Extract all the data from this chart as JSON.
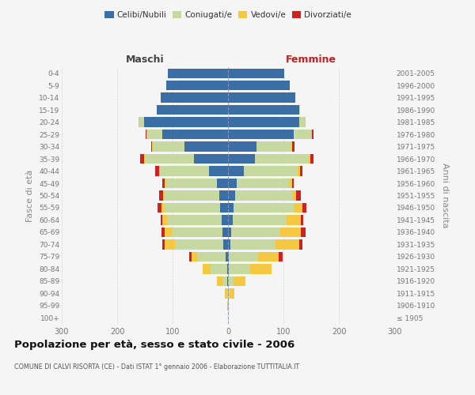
{
  "age_groups": [
    "100+",
    "95-99",
    "90-94",
    "85-89",
    "80-84",
    "75-79",
    "70-74",
    "65-69",
    "60-64",
    "55-59",
    "50-54",
    "45-49",
    "40-44",
    "35-39",
    "30-34",
    "25-29",
    "20-24",
    "15-19",
    "10-14",
    "5-9",
    "0-4"
  ],
  "birth_years": [
    "≤ 1905",
    "1906-1910",
    "1911-1915",
    "1916-1920",
    "1921-1925",
    "1926-1930",
    "1931-1935",
    "1936-1940",
    "1941-1945",
    "1946-1950",
    "1951-1955",
    "1956-1960",
    "1961-1965",
    "1966-1970",
    "1971-1975",
    "1976-1980",
    "1981-1985",
    "1986-1990",
    "1991-1995",
    "1996-2000",
    "2001-2005"
  ],
  "maschi_celibi": [
    0,
    0,
    0,
    2,
    2,
    4,
    8,
    10,
    12,
    14,
    16,
    20,
    35,
    62,
    78,
    118,
    152,
    128,
    122,
    112,
    108
  ],
  "maschi_coniugati": [
    0,
    0,
    2,
    8,
    30,
    52,
    88,
    92,
    98,
    102,
    98,
    92,
    88,
    88,
    58,
    28,
    8,
    0,
    0,
    0,
    0
  ],
  "maschi_vedovi": [
    0,
    1,
    4,
    10,
    14,
    10,
    18,
    12,
    8,
    4,
    3,
    2,
    2,
    2,
    1,
    1,
    2,
    0,
    0,
    0,
    0
  ],
  "maschi_divorziati": [
    0,
    0,
    0,
    0,
    0,
    4,
    4,
    6,
    4,
    7,
    7,
    4,
    7,
    7,
    2,
    2,
    0,
    0,
    0,
    0,
    0
  ],
  "femmine_nubili": [
    0,
    0,
    0,
    0,
    2,
    2,
    4,
    6,
    8,
    10,
    13,
    16,
    28,
    48,
    52,
    118,
    128,
    128,
    122,
    112,
    102
  ],
  "femmine_coniugate": [
    0,
    0,
    3,
    10,
    38,
    52,
    82,
    88,
    98,
    108,
    102,
    95,
    98,
    98,
    62,
    32,
    10,
    2,
    0,
    0,
    0
  ],
  "femmine_vedove": [
    0,
    2,
    8,
    22,
    38,
    38,
    42,
    38,
    26,
    16,
    8,
    4,
    4,
    2,
    2,
    2,
    2,
    0,
    0,
    0,
    0
  ],
  "femmine_divorziate": [
    0,
    0,
    0,
    0,
    0,
    6,
    6,
    8,
    4,
    8,
    8,
    4,
    4,
    6,
    4,
    2,
    0,
    0,
    0,
    0,
    0
  ],
  "colors": {
    "celibi": "#3a6ea5",
    "coniugati": "#c5d9a0",
    "vedovi": "#f5c842",
    "divorziati": "#cc2222"
  },
  "xlim": 300,
  "title": "Popolazione per età, sesso e stato civile - 2006",
  "subtitle": "COMUNE DI CALVI RISORTA (CE) - Dati ISTAT 1° gennaio 2006 - Elaborazione TUTTITALIA.IT",
  "ylabel_left": "Fasce di età",
  "ylabel_right": "Anni di nascita",
  "label_maschi": "Maschi",
  "label_femmine": "Femmine",
  "bg_color": "#f5f5f5",
  "grid_color": "#cccccc",
  "legend_labels": [
    "Celibi/Nubili",
    "Coniugati/e",
    "Vedovi/e",
    "Divorziati/e"
  ]
}
